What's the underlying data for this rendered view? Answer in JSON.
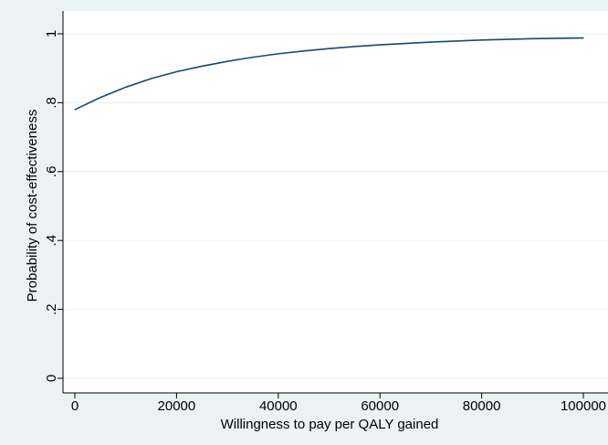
{
  "chart_data": {
    "type": "line",
    "title": "",
    "xlabel": "Willingness to pay per QALY gained",
    "ylabel": "Probability of cost-effectiveness",
    "xlim": [
      0,
      100000
    ],
    "ylim": [
      0,
      1
    ],
    "x_ticks": [
      0,
      20000,
      40000,
      60000,
      80000,
      100000
    ],
    "x_tick_labels": [
      "0",
      "20000",
      "40000",
      "60000",
      "80000",
      "100000"
    ],
    "y_ticks": [
      0,
      0.2,
      0.4,
      0.6,
      0.8,
      1
    ],
    "y_tick_labels": [
      "0",
      ".2",
      ".4",
      ".6",
      ".8",
      "1"
    ],
    "grid": true,
    "legend": "none",
    "colors": {
      "background": "#eaf2f3",
      "plot": "#ffffff",
      "grid": "#eaf2f3",
      "line": "#1a476f"
    },
    "series": [
      {
        "x": [
          0,
          5000,
          10000,
          15000,
          20000,
          25000,
          30000,
          35000,
          40000,
          45000,
          50000,
          55000,
          60000,
          65000,
          70000,
          75000,
          80000,
          85000,
          90000,
          95000,
          100000
        ],
        "values": [
          0.78,
          0.815,
          0.845,
          0.87,
          0.89,
          0.906,
          0.92,
          0.932,
          0.942,
          0.95,
          0.957,
          0.963,
          0.968,
          0.972,
          0.976,
          0.979,
          0.982,
          0.984,
          0.986,
          0.987,
          0.988
        ]
      }
    ]
  }
}
